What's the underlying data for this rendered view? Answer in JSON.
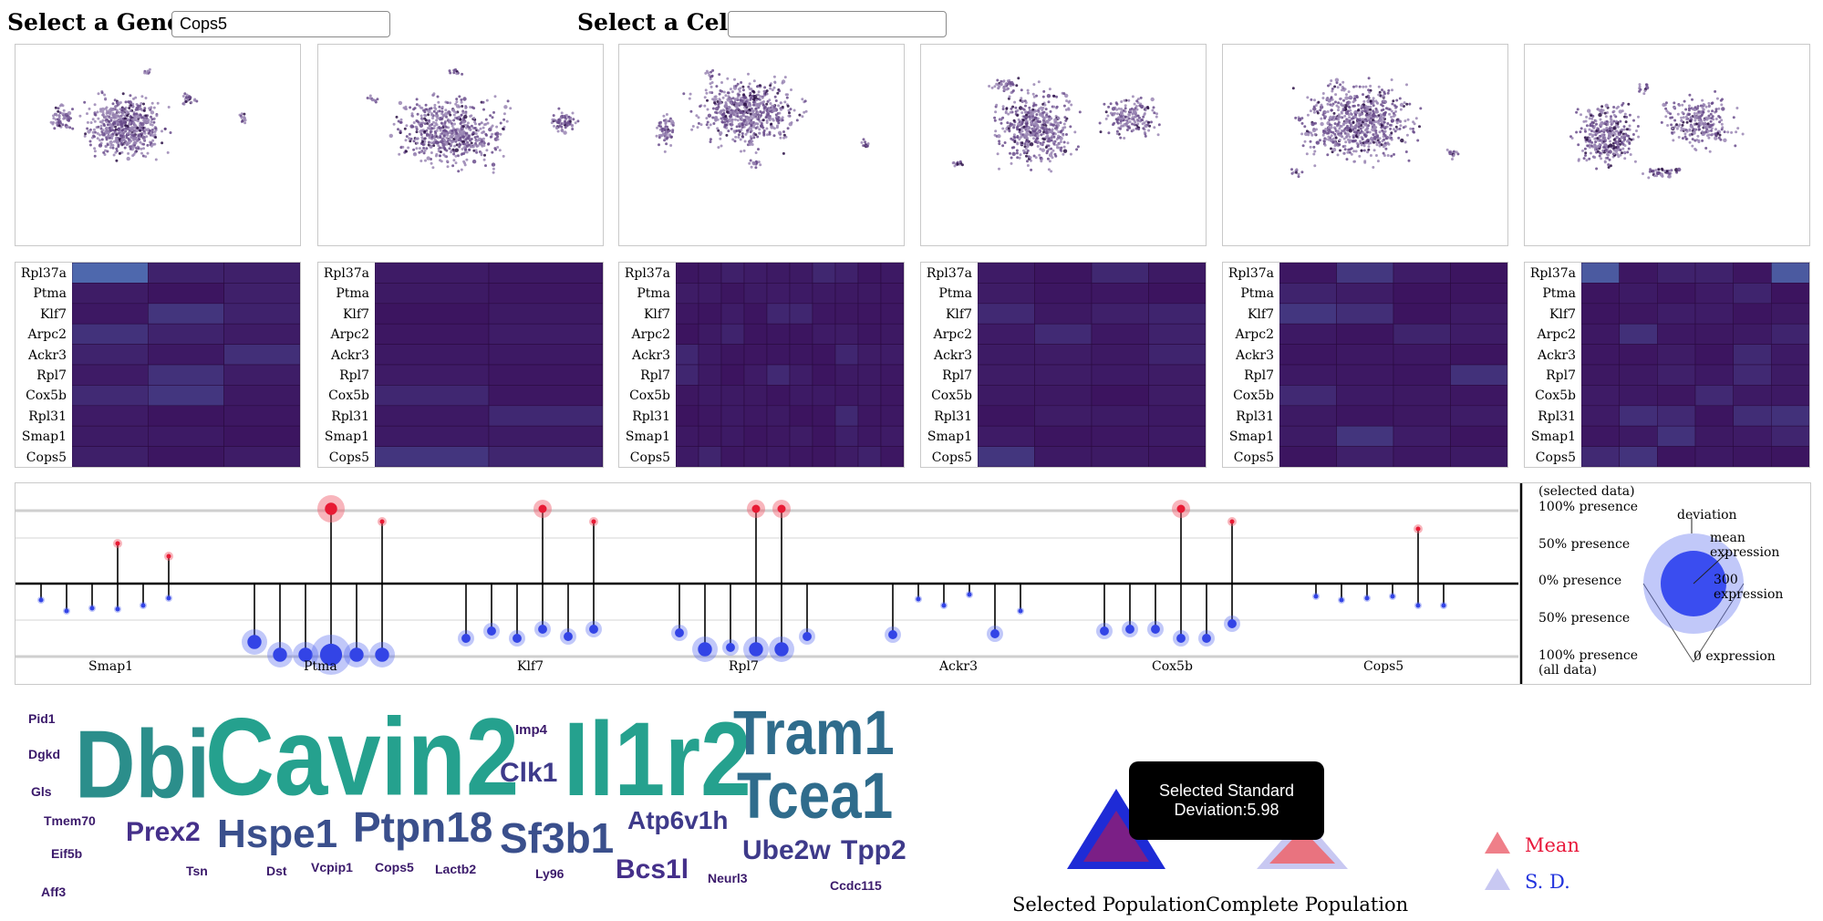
{
  "controls": {
    "gene_label": "Select a Gene:",
    "gene_value": "Cops5",
    "cell_label": "Select a Cell:",
    "cell_value": ""
  },
  "heatmap_genes": [
    "Rpl37a",
    "Ptma",
    "Klf7",
    "Arpc2",
    "Ackr3",
    "Rpl7",
    "Cox5b",
    "Rpl31",
    "Smap1",
    "Cops5"
  ],
  "lollipop": {
    "legend": {
      "selected_data": "(selected data)",
      "p100_top": "100% presence",
      "p50_top": "50% presence",
      "p0": "0% presence",
      "p50_bottom": "50% presence",
      "p100_bottom": "100% presence",
      "all_data": "(all data)",
      "deviation": "deviation",
      "mean_expression": "mean expression",
      "expr_300": "300 expression",
      "expr_0": "0 expression"
    },
    "group_labels": [
      "Smap1",
      "Ptma",
      "Klf7",
      "Rpl7",
      "Ackr3",
      "Cox5b",
      "Cops5"
    ]
  },
  "word_cloud": [
    {
      "text": "Pid1",
      "color": "#3b1a6b"
    },
    {
      "text": "Dgkd",
      "color": "#3b1a6b"
    },
    {
      "text": "Gls",
      "color": "#3b1a6b"
    },
    {
      "text": "Tmem70",
      "color": "#3b1a6b"
    },
    {
      "text": "Eif5b",
      "color": "#3b1a6b"
    },
    {
      "text": "Aff3",
      "color": "#3b1a6b"
    },
    {
      "text": "Dbi",
      "color": "#2b8e8b"
    },
    {
      "text": "Cavin2",
      "color": "#25a18e"
    },
    {
      "text": "Imp4",
      "color": "#3b1a6b"
    },
    {
      "text": "Clk1",
      "color": "#3e3a8a"
    },
    {
      "text": "Il1r2",
      "color": "#25a18e"
    },
    {
      "text": "Tram1",
      "color": "#2f6c8c"
    },
    {
      "text": "Tcea1",
      "color": "#2f6c8c"
    },
    {
      "text": "Prex2",
      "color": "#45308a"
    },
    {
      "text": "Hspe1",
      "color": "#3a4f8c"
    },
    {
      "text": "Ptpn18",
      "color": "#3a4f8c"
    },
    {
      "text": "Sf3b1",
      "color": "#3a4f8c"
    },
    {
      "text": "Atp6v1h",
      "color": "#3e3a8a"
    },
    {
      "text": "Ube2w",
      "color": "#3e3a8a"
    },
    {
      "text": "Tpp2",
      "color": "#3e3a8a"
    },
    {
      "text": "Tsn",
      "color": "#3b1a6b"
    },
    {
      "text": "Dst",
      "color": "#3b1a6b"
    },
    {
      "text": "Vcpip1",
      "color": "#3b1a6b"
    },
    {
      "text": "Cops5",
      "color": "#3b1a6b"
    },
    {
      "text": "Lactb2",
      "color": "#3b1a6b"
    },
    {
      "text": "Ly96",
      "color": "#3b1a6b"
    },
    {
      "text": "Bcs1l",
      "color": "#45308a"
    },
    {
      "text": "Neurl3",
      "color": "#3b1a6b"
    },
    {
      "text": "Ccdc115",
      "color": "#3b1a6b"
    }
  ],
  "tooltip": {
    "line1": "Selected Standard",
    "line2": "Deviation:5.98"
  },
  "population_labels": {
    "selected": "Selected Population",
    "complete": "Complete Population"
  },
  "mean_sd_legend": {
    "mean": "Mean",
    "sd": "S. D."
  }
}
